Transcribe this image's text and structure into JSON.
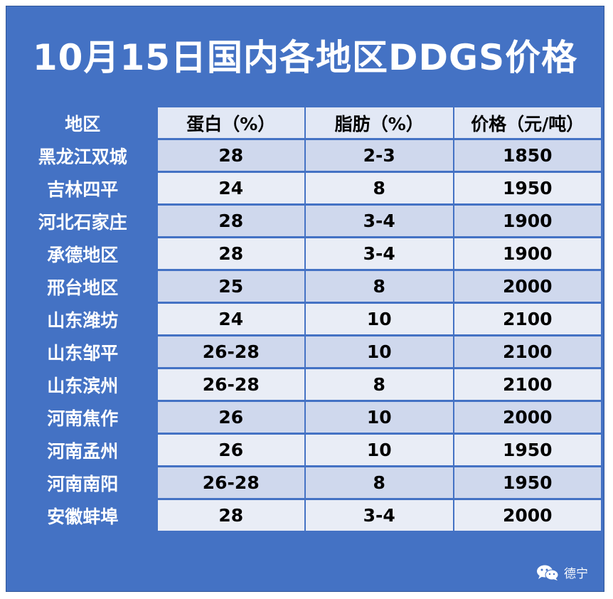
{
  "title": "10月15日国内各地区DDGS价格",
  "headers": [
    "地区",
    "蛋白（%）",
    "脂肪（%）",
    "价格（元/吨）"
  ],
  "rows": [
    [
      "黑龙江双城",
      "28",
      "2-3",
      "1850"
    ],
    [
      "吉林四平",
      "24",
      "8",
      "1950"
    ],
    [
      "河北石家庄",
      "28",
      "3-4",
      "1900"
    ],
    [
      "承德地区",
      "28",
      "3-4",
      "1900"
    ],
    [
      "邢台地区",
      "25",
      "8",
      "2000"
    ],
    [
      "山东潍坊",
      "24",
      "10",
      "2100"
    ],
    [
      "山东邹平",
      "26-28",
      "10",
      "2100"
    ],
    [
      "山东滨州",
      "26-28",
      "8",
      "2100"
    ],
    [
      "河南焦作",
      "26",
      "10",
      "2000"
    ],
    [
      "河南孟州",
      "26",
      "10",
      "1950"
    ],
    [
      "河南南阳",
      "26-28",
      "8",
      "1950"
    ],
    [
      "安徽蚌埠",
      "28",
      "3-4",
      "2000"
    ]
  ],
  "watermark": {
    "icon": "wechat-icon",
    "text": "德宁"
  },
  "colors": {
    "header_blue": "#4472c4",
    "row_light": "#e9edf6",
    "row_mid": "#cfd8ed"
  }
}
